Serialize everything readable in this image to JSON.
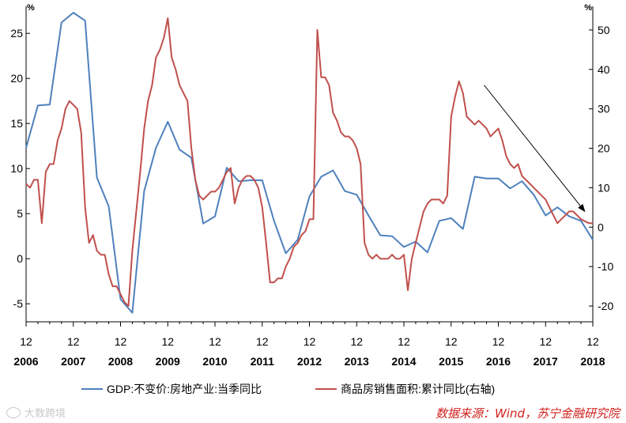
{
  "chart_data": {
    "type": "line",
    "title": "",
    "left_axis": {
      "unit": "%",
      "min": -7,
      "max": 28,
      "ticks": [
        -5,
        0,
        5,
        10,
        15,
        20,
        25
      ],
      "tick_labels": [
        "-5",
        "0",
        "5",
        "10",
        "15",
        "20",
        "25"
      ]
    },
    "right_axis": {
      "unit": "%",
      "min": -24,
      "max": 56,
      "ticks": [
        -20,
        -10,
        0,
        10,
        20,
        30,
        40,
        50
      ],
      "tick_labels": [
        "-20",
        "-10",
        "0",
        "10",
        "20",
        "30",
        "40",
        "50"
      ]
    },
    "x_range": [
      2006.0,
      2018.0
    ],
    "x_month_labels": [
      "12",
      "12",
      "12",
      "12",
      "12",
      "12",
      "12",
      "12",
      "12",
      "12",
      "12",
      "12",
      "12"
    ],
    "x_year_labels": [
      "2006",
      "2007",
      "2008",
      "2009",
      "2010",
      "2011",
      "2012",
      "2013",
      "2014",
      "2015",
      "2016",
      "2017",
      "2018"
    ],
    "grid": false,
    "legend_position": "bottom",
    "series": [
      {
        "name": "GDP:不变价:房地产业:当季同比",
        "axis": "left",
        "color": "#4f81bd",
        "x": [
          2006.0,
          2006.25,
          2006.5,
          2006.75,
          2007.0,
          2007.25,
          2007.5,
          2007.75,
          2008.0,
          2008.25,
          2008.5,
          2008.75,
          2009.0,
          2009.25,
          2009.5,
          2009.75,
          2010.0,
          2010.25,
          2010.5,
          2010.75,
          2011.0,
          2011.25,
          2011.5,
          2011.75,
          2012.0,
          2012.25,
          2012.5,
          2012.75,
          2013.0,
          2013.25,
          2013.5,
          2013.75,
          2014.0,
          2014.25,
          2014.5,
          2014.75,
          2015.0,
          2015.25,
          2015.5,
          2015.75,
          2016.0,
          2016.25,
          2016.5,
          2016.75,
          2017.0,
          2017.25,
          2017.5,
          2017.75,
          2018.0
        ],
        "values": [
          12.3,
          17.0,
          17.1,
          26.2,
          27.3,
          26.4,
          9.0,
          5.8,
          -4.5,
          -6.0,
          7.5,
          12.3,
          15.2,
          12.1,
          11.2,
          3.9,
          4.7,
          10.1,
          8.6,
          8.7,
          8.7,
          4.2,
          0.6,
          2.1,
          6.9,
          9.1,
          9.8,
          7.5,
          7.1,
          4.8,
          2.6,
          2.5,
          1.3,
          1.9,
          0.7,
          4.2,
          4.5,
          3.3,
          9.1,
          8.9,
          8.9,
          7.8,
          8.6,
          7.1,
          4.8,
          5.7,
          4.7,
          4.2,
          2.1
        ]
      },
      {
        "name": "商品房销售面积:累计同比(右轴)",
        "axis": "right",
        "color": "#c0504d",
        "x": [
          2006.0,
          2006.083,
          2006.167,
          2006.25,
          2006.333,
          2006.417,
          2006.5,
          2006.583,
          2006.667,
          2006.75,
          2006.833,
          2006.917,
          2007.0,
          2007.083,
          2007.167,
          2007.25,
          2007.333,
          2007.417,
          2007.5,
          2007.583,
          2007.667,
          2007.75,
          2007.833,
          2007.917,
          2008.0,
          2008.083,
          2008.167,
          2008.25,
          2008.333,
          2008.417,
          2008.5,
          2008.583,
          2008.667,
          2008.75,
          2008.833,
          2008.917,
          2009.0,
          2009.083,
          2009.167,
          2009.25,
          2009.333,
          2009.417,
          2009.5,
          2009.583,
          2009.667,
          2009.75,
          2009.833,
          2009.917,
          2010.0,
          2010.083,
          2010.167,
          2010.25,
          2010.333,
          2010.417,
          2010.5,
          2010.583,
          2010.667,
          2010.75,
          2010.833,
          2010.917,
          2011.0,
          2011.083,
          2011.167,
          2011.25,
          2011.333,
          2011.417,
          2011.5,
          2011.583,
          2011.667,
          2011.75,
          2011.833,
          2011.917,
          2012.0,
          2012.083,
          2012.167,
          2012.25,
          2012.333,
          2012.417,
          2012.5,
          2012.583,
          2012.667,
          2012.75,
          2012.833,
          2012.917,
          2013.0,
          2013.083,
          2013.167,
          2013.25,
          2013.333,
          2013.417,
          2013.5,
          2013.583,
          2013.667,
          2013.75,
          2013.833,
          2013.917,
          2014.0,
          2014.083,
          2014.167,
          2014.25,
          2014.333,
          2014.417,
          2014.5,
          2014.583,
          2014.667,
          2014.75,
          2014.833,
          2014.917,
          2015.0,
          2015.083,
          2015.167,
          2015.25,
          2015.333,
          2015.417,
          2015.5,
          2015.583,
          2015.667,
          2015.75,
          2015.833,
          2015.917,
          2016.0,
          2016.083,
          2016.167,
          2016.25,
          2016.333,
          2016.417,
          2016.5,
          2016.583,
          2016.667,
          2016.75,
          2016.833,
          2016.917,
          2017.0,
          2017.083,
          2017.167,
          2017.25,
          2017.333,
          2017.417,
          2017.5,
          2017.583,
          2017.667,
          2017.75,
          2017.833,
          2017.917,
          2018.0
        ],
        "values": [
          11,
          10,
          12,
          12,
          1,
          14,
          16,
          16,
          22,
          25,
          30,
          32,
          31,
          30,
          24,
          5,
          -4,
          -2,
          -6,
          -7,
          -7,
          -12,
          -15,
          -15,
          -17,
          -19,
          -20,
          -6,
          4,
          14,
          25,
          32,
          36,
          43,
          45,
          48,
          53,
          43,
          40,
          36,
          34,
          32,
          20,
          12,
          8,
          7,
          8,
          9,
          9,
          10,
          12,
          14,
          15,
          6,
          10,
          12,
          13,
          13,
          12,
          10,
          5,
          -4,
          -14,
          -14,
          -13,
          -13,
          -10,
          -8,
          -5,
          -4,
          -2,
          -1,
          2,
          2,
          50,
          38,
          38,
          36,
          29,
          27,
          24,
          23,
          23,
          22,
          20,
          16,
          -4,
          -7,
          -8,
          -7,
          -8,
          -8,
          -8,
          -7,
          -8,
          -8,
          -7,
          -16,
          -8,
          -4,
          0,
          4,
          6,
          7,
          7,
          7,
          6,
          8,
          28,
          33,
          37,
          34,
          28,
          27,
          26,
          27,
          26,
          25,
          23,
          24,
          25,
          22,
          18,
          16,
          15,
          16,
          13,
          12,
          11,
          10,
          9,
          8,
          7,
          5,
          3,
          1,
          2,
          3,
          4,
          4,
          3,
          2,
          1.5,
          1,
          1
        ]
      }
    ],
    "annotations": [
      {
        "type": "trend-arrow",
        "from": {
          "x": 2015.7,
          "axis": "right",
          "y": 36
        },
        "to": {
          "x": 2017.83,
          "axis": "right",
          "y": 4
        }
      }
    ]
  },
  "source_text": "数据来源：Wind，苏宁金融研究院",
  "watermark_text": "大数跨境",
  "colors": {
    "gdp_line": "#4f81bd",
    "sales_line": "#c0504d",
    "axis": "#000000",
    "source": "#d0201c"
  }
}
